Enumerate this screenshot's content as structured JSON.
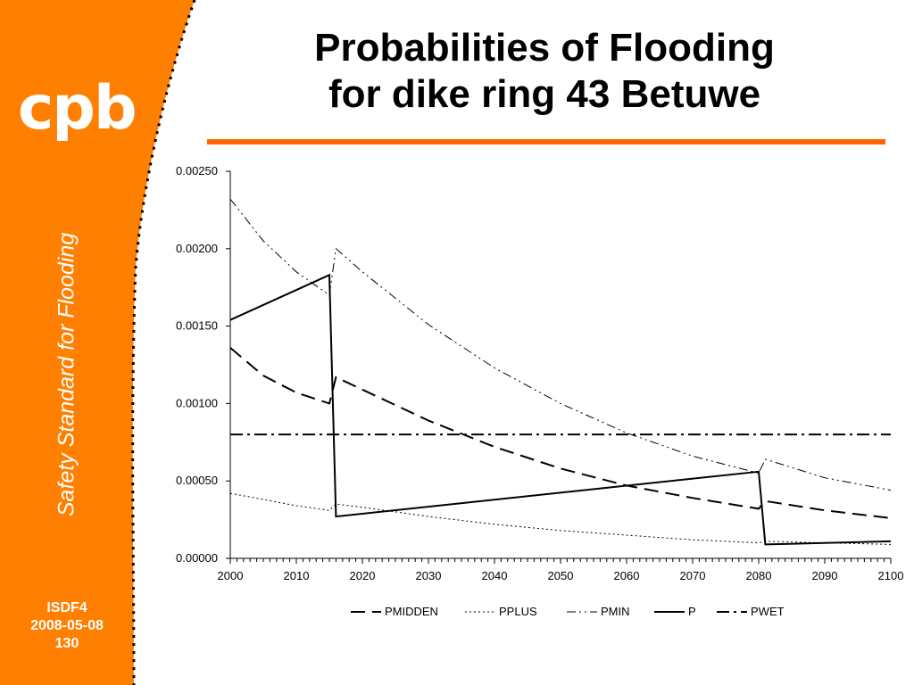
{
  "slide": {
    "logo": "cpb",
    "sidebar_subtitle": "Safety Standard for Flooding",
    "footer": [
      "ISDF4",
      "2008-05-08",
      "130"
    ],
    "accent_color": "#ff7f00"
  },
  "chart_data": {
    "type": "line",
    "title": [
      "Probabilities of Flooding",
      "for dike ring 43 Betuwe"
    ],
    "xlabel": "",
    "ylabel": "",
    "xlim": [
      2000,
      2100
    ],
    "ylim": [
      0,
      0.0025
    ],
    "x_ticks": [
      "2000",
      "2010",
      "2020",
      "2030",
      "2040",
      "2050",
      "2060",
      "2070",
      "2080",
      "2090",
      "2100"
    ],
    "y_ticks": [
      "0.00000",
      "0.00050",
      "0.00100",
      "0.00150",
      "0.00200",
      "0.00250"
    ],
    "grid": false,
    "legend_position": "bottom",
    "series": [
      {
        "name": "PMIDDEN",
        "dash": "long-dash",
        "x": [
          2000,
          2005,
          2010,
          2015,
          2016,
          2020,
          2030,
          2040,
          2050,
          2060,
          2070,
          2080,
          2081,
          2090,
          2100
        ],
        "y": [
          0.00136,
          0.00118,
          0.00107,
          0.001,
          0.00117,
          0.00109,
          0.00089,
          0.00072,
          0.00058,
          0.00047,
          0.00039,
          0.00032,
          0.00037,
          0.00031,
          0.00026
        ]
      },
      {
        "name": "PPLUS",
        "dash": "dotted",
        "x": [
          2000,
          2005,
          2010,
          2015,
          2016,
          2020,
          2030,
          2040,
          2050,
          2060,
          2070,
          2080,
          2081,
          2090,
          2100
        ],
        "y": [
          0.00042,
          0.00038,
          0.00034,
          0.00031,
          0.00035,
          0.00033,
          0.00027,
          0.00022,
          0.00018,
          0.00015,
          0.00012,
          0.0001,
          0.00011,
          0.0001,
          9e-05
        ]
      },
      {
        "name": "PMIN",
        "dash": "dash-dot-dot",
        "x": [
          2000,
          2005,
          2010,
          2015,
          2016,
          2020,
          2030,
          2040,
          2050,
          2060,
          2070,
          2080,
          2081,
          2090,
          2100
        ],
        "y": [
          0.00232,
          0.00205,
          0.00185,
          0.0017,
          0.002,
          0.00185,
          0.00151,
          0.00123,
          0.001,
          0.00081,
          0.00066,
          0.00055,
          0.00064,
          0.00052,
          0.00044
        ]
      },
      {
        "name": "P",
        "dash": "solid",
        "x": [
          2000,
          2015,
          2016,
          2080,
          2081,
          2100
        ],
        "y": [
          0.00154,
          0.00183,
          0.00027,
          0.00056,
          9e-05,
          0.00011
        ]
      },
      {
        "name": "PWET",
        "dash": "dash-dot",
        "x": [
          2000,
          2100
        ],
        "y": [
          0.0008,
          0.0008
        ]
      }
    ]
  }
}
